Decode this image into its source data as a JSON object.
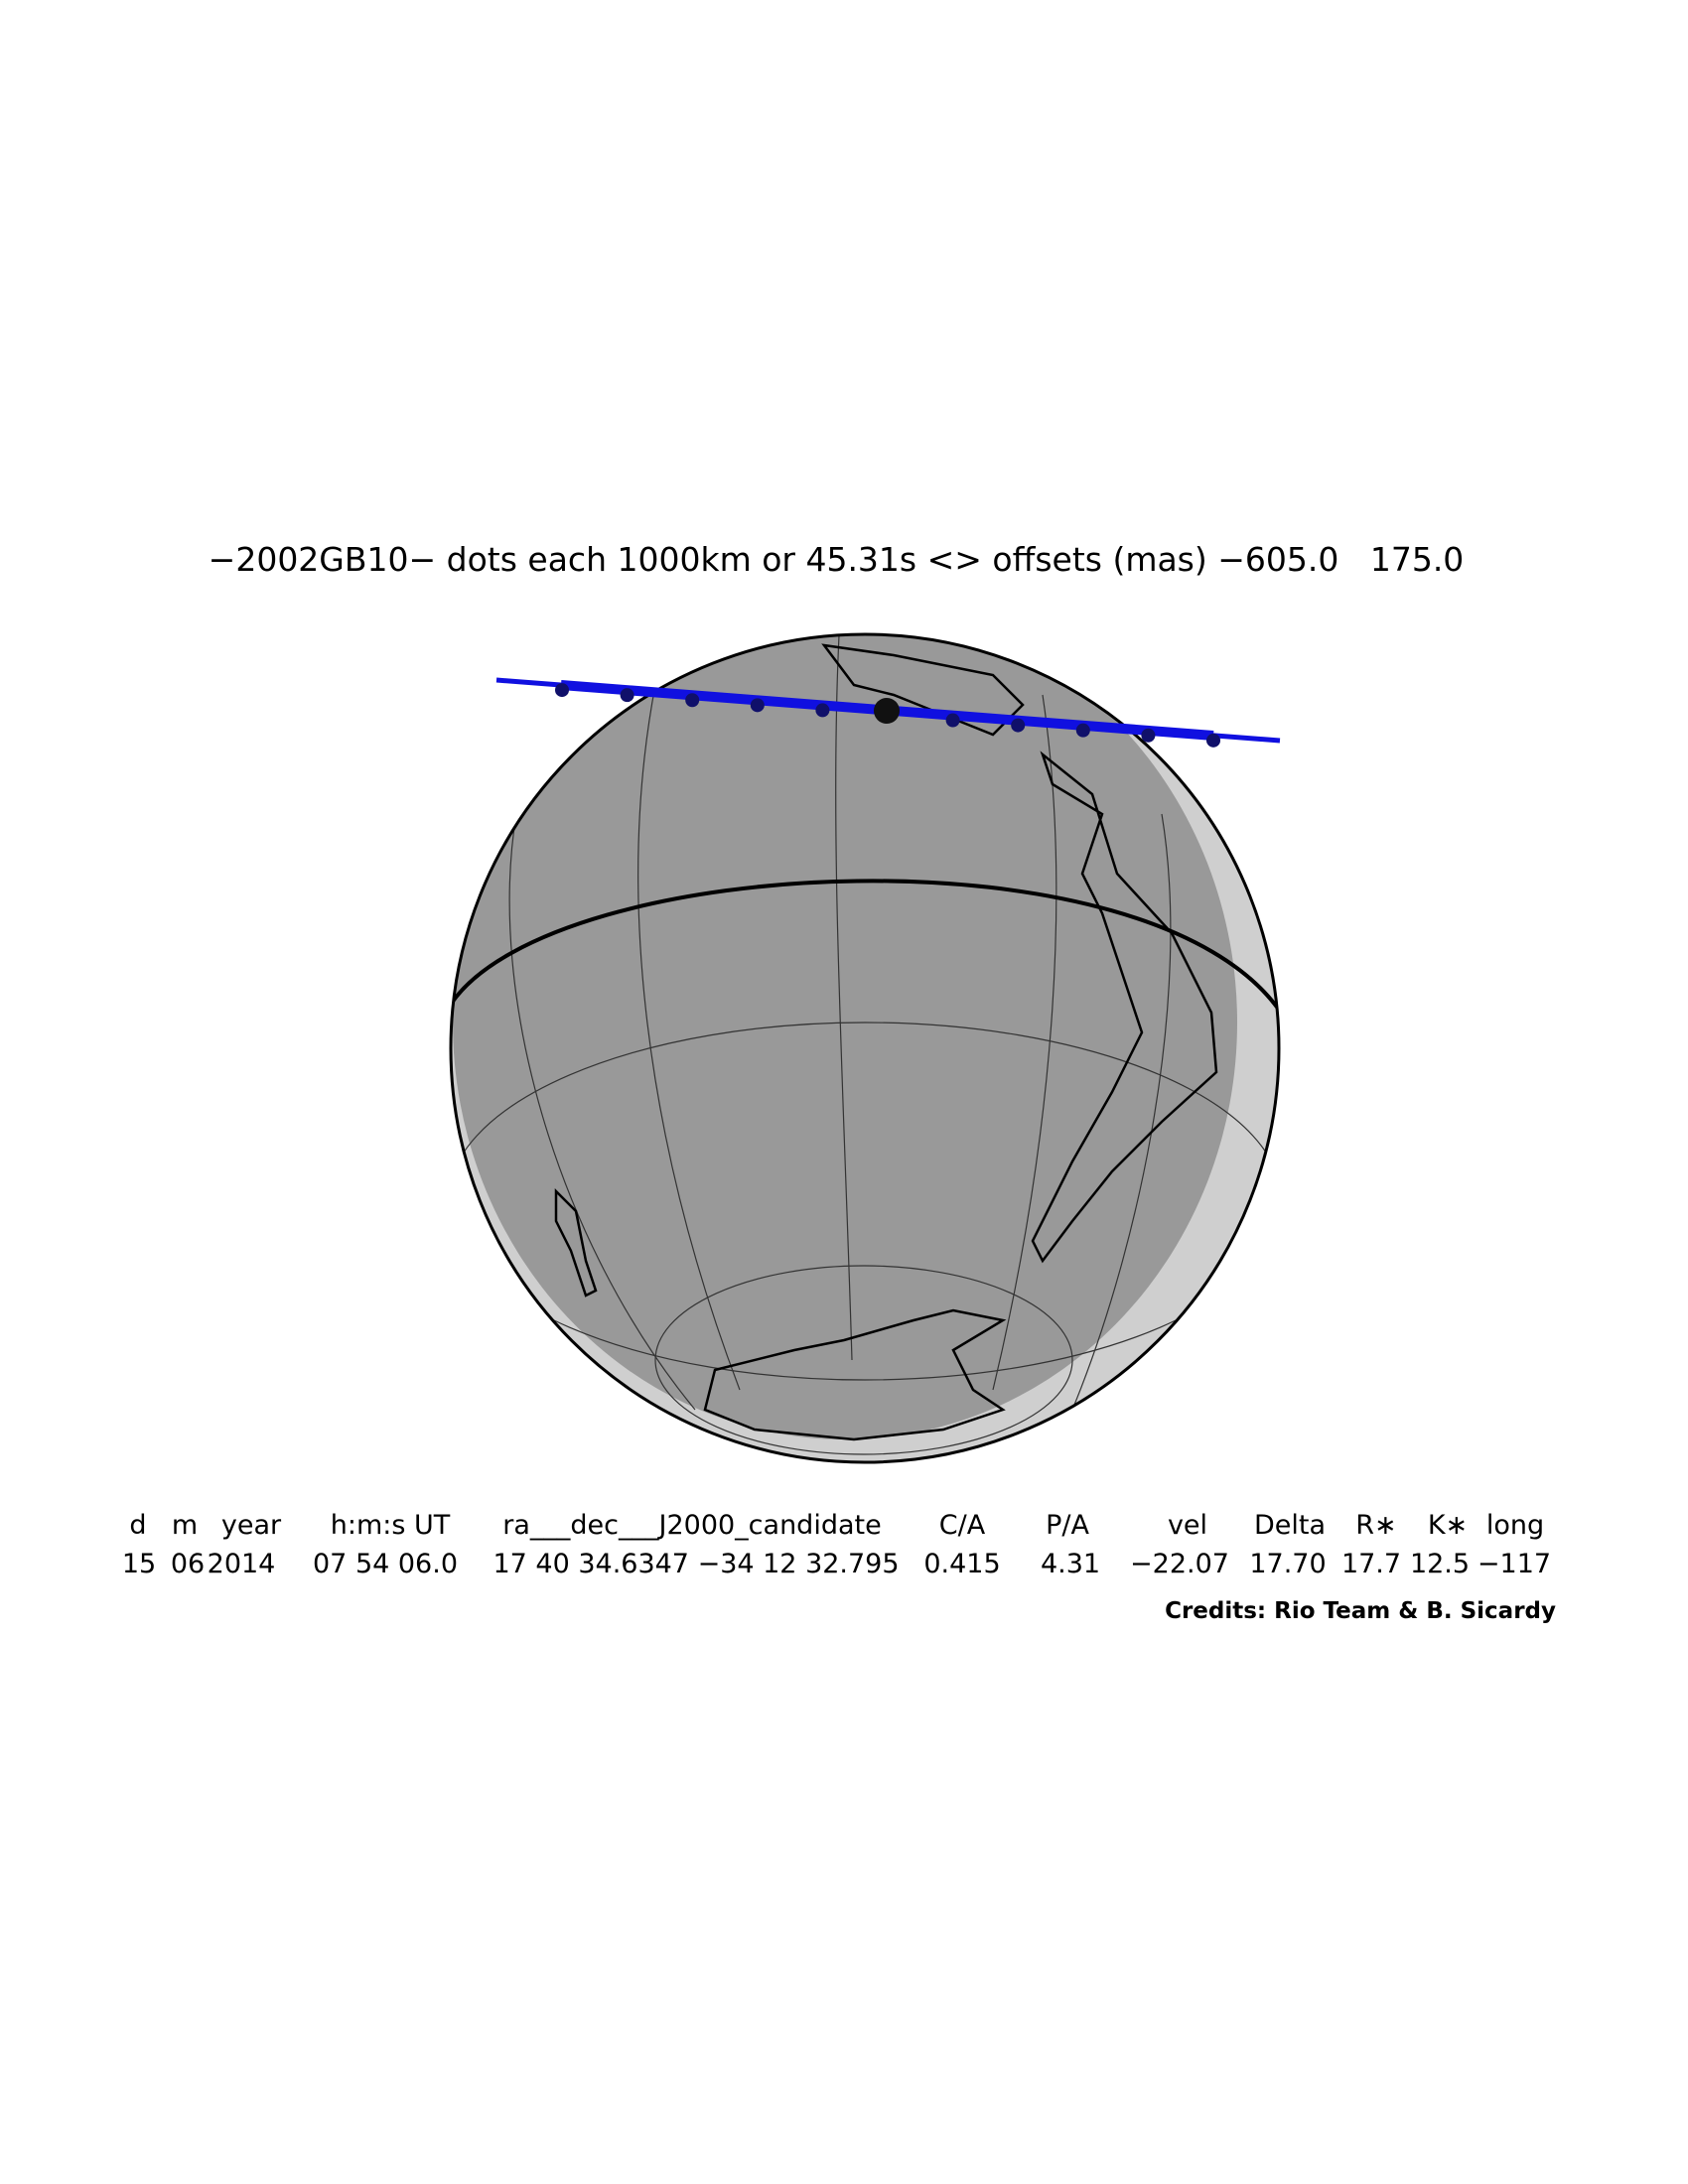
{
  "title": "−2002GB10− dots each 1000km or 45.31s <> offsets (mas) −605.0   175.0",
  "table": {
    "header": [
      "d",
      "m",
      "year",
      "h:m:s UT",
      "ra___dec___J2000_candidate",
      "C/A",
      "P/A",
      "vel",
      "Delta",
      "R∗",
      "K∗",
      "long"
    ],
    "row": [
      "15",
      "06",
      "2014",
      "07 54 06.0",
      "17 40 34.6347 −34 12 32.795",
      "0.415",
      "4.31",
      "−22.07",
      "17.70",
      "17.7",
      "12.5",
      "−117"
    ]
  },
  "credits": "Credits: Rio Team & B. Sicardy"
}
